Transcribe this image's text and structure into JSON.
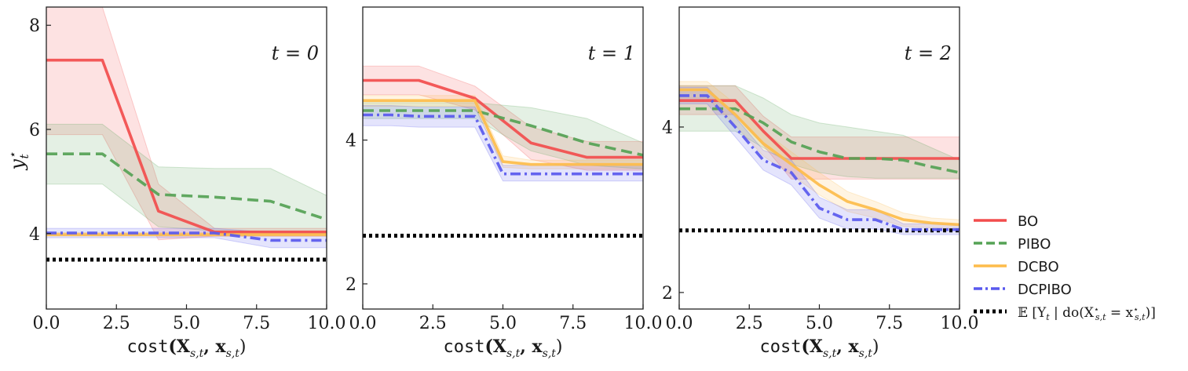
{
  "chart_data": {
    "type": "line",
    "xlabel_func": "cost",
    "xlabel_args": "(X",
    "xlabel_args_sub": "s,t",
    "xlabel_args_mid": ", x",
    "xlabel_args_sub2": "s,t",
    "xlabel_args_end": ")",
    "ylabel_main": "y",
    "ylabel_sup": "⋆",
    "ylabel_sub": "t",
    "x_tick_labels": [
      "0.0",
      "2.5",
      "5.0",
      "7.5",
      "10.0"
    ],
    "x_ticks": [
      0,
      2.5,
      5,
      7.5,
      10
    ],
    "xlim": [
      0,
      10
    ],
    "grid": false,
    "legend_position": "right",
    "legend": [
      {
        "label": "BO",
        "series": "BO"
      },
      {
        "label": "PIBO",
        "series": "PIBO"
      },
      {
        "label": "DCBO",
        "series": "DCBO"
      },
      {
        "label": "DCPIBO",
        "series": "DCPIBO"
      },
      {
        "label": "𝔼 [Y",
        "label_sub": "t",
        "label_rest": " | do(X",
        "label_sup2": "⋆",
        "label_sub2": "s,t",
        "label_rest2": " = x",
        "label_sup3": "⋆",
        "label_sub3": "s,t",
        "label_end": ")]",
        "series": "optimum"
      }
    ],
    "styles": {
      "BO": {
        "color": "#f24d4d",
        "dash": "solid"
      },
      "PIBO": {
        "color": "#55a255",
        "dash": "dashed"
      },
      "DCBO": {
        "color": "#fdbc4b",
        "dash": "solid"
      },
      "DCPIBO": {
        "color": "#5959ee",
        "dash": "dashdot"
      },
      "optimum": {
        "color": "#000000",
        "dash": "dotted"
      }
    },
    "panels": [
      {
        "annotation": "t = 0",
        "ylim": [
          2.55,
          8.35
        ],
        "y_ticks": [
          4,
          6,
          8
        ],
        "y_tick_labels": [
          "4",
          "6",
          "8"
        ],
        "optimum": 3.5,
        "series": [
          {
            "key": "BO",
            "x": [
              0,
              2,
              4,
              6,
              8,
              10
            ],
            "y": [
              7.33,
              7.33,
              4.43,
              4.03,
              4.03,
              4.03
            ],
            "lower": [
              5.9,
              5.9,
              3.88,
              3.95,
              3.95,
              3.95
            ],
            "upper": [
              8.35,
              8.35,
              4.95,
              4.1,
              4.1,
              4.1
            ]
          },
          {
            "key": "PIBO",
            "x": [
              0,
              2,
              4,
              6,
              8,
              10
            ],
            "y": [
              5.53,
              5.53,
              4.75,
              4.7,
              4.62,
              4.27
            ],
            "lower": [
              4.95,
              4.95,
              4.13,
              4.05,
              4.02,
              4.02
            ],
            "upper": [
              6.1,
              6.1,
              5.28,
              5.25,
              5.25,
              4.73
            ]
          },
          {
            "key": "DCBO",
            "x": [
              0,
              2,
              4,
              6,
              8,
              10
            ],
            "y": [
              3.98,
              3.98,
              3.98,
              3.98,
              3.98,
              3.98
            ],
            "lower": [
              3.95,
              3.95,
              3.95,
              3.95,
              3.95,
              3.95
            ],
            "upper": [
              4.02,
              4.02,
              4.02,
              4.02,
              4.02,
              4.02
            ]
          },
          {
            "key": "DCPIBO",
            "x": [
              0,
              2,
              4,
              6,
              8,
              10
            ],
            "y": [
              4.01,
              4.01,
              4.01,
              4.01,
              3.87,
              3.87
            ],
            "lower": [
              3.92,
              3.92,
              3.92,
              3.92,
              3.73,
              3.73
            ],
            "upper": [
              4.1,
              4.1,
              4.1,
              4.1,
              4.02,
              4.02
            ]
          }
        ]
      },
      {
        "annotation": "t = 1",
        "ylim": [
          1.65,
          5.85
        ],
        "y_ticks": [
          2,
          4
        ],
        "y_tick_labels": [
          "2",
          "4"
        ],
        "optimum": 2.67,
        "series": [
          {
            "key": "BO",
            "x": [
              0,
              2,
              4,
              6,
              8,
              10
            ],
            "y": [
              4.83,
              4.83,
              4.58,
              3.96,
              3.76,
              3.76
            ],
            "lower": [
              4.63,
              4.63,
              4.42,
              3.73,
              3.58,
              3.58
            ],
            "upper": [
              5.03,
              5.03,
              4.75,
              4.18,
              3.98,
              3.98
            ]
          },
          {
            "key": "PIBO",
            "x": [
              0,
              2,
              4,
              6,
              8,
              10
            ],
            "y": [
              4.41,
              4.41,
              4.41,
              4.2,
              3.96,
              3.79
            ],
            "lower": [
              4.3,
              4.3,
              4.3,
              3.85,
              3.65,
              3.6
            ],
            "upper": [
              4.52,
              4.52,
              4.52,
              4.45,
              4.3,
              3.96
            ]
          },
          {
            "key": "DCBO",
            "x": [
              0,
              1,
              2,
              3,
              4,
              5,
              6,
              7,
              8,
              9,
              10
            ],
            "y": [
              4.55,
              4.55,
              4.55,
              4.55,
              4.55,
              3.7,
              3.66,
              3.66,
              3.66,
              3.66,
              3.66
            ],
            "lower": [
              4.47,
              4.47,
              4.47,
              4.47,
              4.47,
              3.62,
              3.6,
              3.6,
              3.6,
              3.6,
              3.6
            ],
            "upper": [
              4.62,
              4.62,
              4.62,
              4.62,
              4.62,
              3.78,
              3.72,
              3.72,
              3.72,
              3.72,
              3.72
            ]
          },
          {
            "key": "DCPIBO",
            "x": [
              0,
              1,
              2,
              3,
              4,
              5,
              6,
              7,
              8,
              9,
              10
            ],
            "y": [
              4.35,
              4.35,
              4.33,
              4.33,
              4.33,
              3.53,
              3.53,
              3.53,
              3.53,
              3.53,
              3.53
            ],
            "lower": [
              4.2,
              4.2,
              4.18,
              4.18,
              4.18,
              3.43,
              3.43,
              3.43,
              3.43,
              3.43,
              3.43
            ],
            "upper": [
              4.48,
              4.48,
              4.46,
              4.46,
              4.46,
              3.65,
              3.65,
              3.65,
              3.65,
              3.65,
              3.65
            ]
          }
        ]
      },
      {
        "annotation": "t = 2",
        "ylim": [
          1.8,
          5.45
        ],
        "y_ticks": [
          2,
          4
        ],
        "y_tick_labels": [
          "2",
          "4"
        ],
        "optimum": 2.75,
        "series": [
          {
            "key": "BO",
            "x": [
              0,
              1,
              2,
              3,
              4,
              5,
              6,
              7,
              8,
              9,
              10
            ],
            "y": [
              4.32,
              4.32,
              4.32,
              3.95,
              3.62,
              3.62,
              3.62,
              3.62,
              3.62,
              3.62,
              3.62
            ],
            "lower": [
              4.15,
              4.15,
              4.15,
              3.78,
              3.37,
              3.37,
              3.37,
              3.37,
              3.37,
              3.37,
              3.37
            ],
            "upper": [
              4.5,
              4.5,
              4.5,
              4.13,
              3.88,
              3.88,
              3.88,
              3.88,
              3.88,
              3.88,
              3.88
            ]
          },
          {
            "key": "PIBO",
            "x": [
              0,
              1,
              2,
              3,
              4,
              5,
              6,
              7,
              8,
              9,
              10
            ],
            "y": [
              4.22,
              4.22,
              4.22,
              4.05,
              3.82,
              3.7,
              3.62,
              3.62,
              3.6,
              3.52,
              3.45
            ],
            "lower": [
              3.95,
              3.95,
              3.95,
              3.75,
              3.55,
              3.45,
              3.4,
              3.38,
              3.38,
              3.38,
              3.38
            ],
            "upper": [
              4.5,
              4.5,
              4.5,
              4.35,
              4.15,
              4.05,
              4.0,
              3.95,
              3.9,
              3.75,
              3.6
            ]
          },
          {
            "key": "DCBO",
            "x": [
              0,
              1,
              2,
              3,
              4,
              5,
              6,
              7,
              8,
              9,
              10
            ],
            "y": [
              4.45,
              4.45,
              4.15,
              3.8,
              3.55,
              3.3,
              3.1,
              3.0,
              2.88,
              2.84,
              2.82
            ],
            "lower": [
              4.35,
              4.35,
              4.02,
              3.65,
              3.42,
              3.18,
              2.98,
              2.9,
              2.8,
              2.78,
              2.77
            ],
            "upper": [
              4.55,
              4.55,
              4.28,
              3.95,
              3.7,
              3.45,
              3.22,
              3.1,
              2.96,
              2.9,
              2.88
            ]
          },
          {
            "key": "DCPIBO",
            "x": [
              0,
              1,
              2,
              3,
              4,
              5,
              6,
              7,
              8,
              9,
              10
            ],
            "y": [
              4.38,
              4.38,
              4.0,
              3.6,
              3.45,
              3.02,
              2.88,
              2.88,
              2.76,
              2.76,
              2.76
            ],
            "lower": [
              4.28,
              4.28,
              3.88,
              3.48,
              3.3,
              2.9,
              2.77,
              2.77,
              2.7,
              2.7,
              2.7
            ],
            "upper": [
              4.48,
              4.48,
              4.12,
              3.72,
              3.6,
              3.15,
              3.0,
              3.0,
              2.83,
              2.83,
              2.83
            ]
          }
        ]
      }
    ]
  }
}
